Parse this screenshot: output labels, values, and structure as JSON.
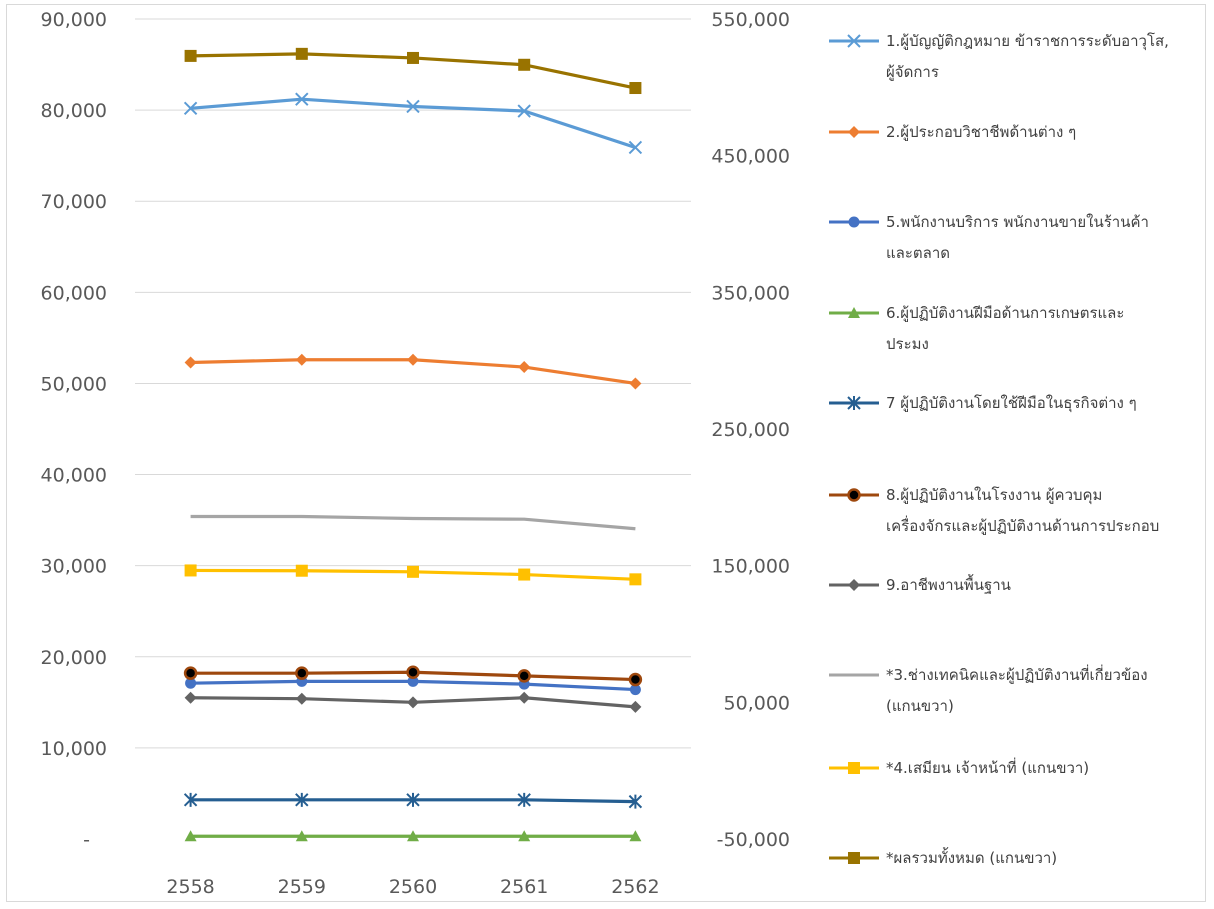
{
  "chart_data": {
    "type": "line",
    "categories": [
      "2558",
      "2559",
      "2560",
      "2561",
      "2562"
    ],
    "y_left": {
      "ticks": [
        "-",
        "10,000",
        "20,000",
        "30,000",
        "40,000",
        "50,000",
        "60,000",
        "70,000",
        "80,000",
        "90,000"
      ],
      "ylim": [
        0,
        90000
      ]
    },
    "y_right": {
      "ticks": [
        "-50,000",
        "50,000",
        "150,000",
        "250,000",
        "350,000",
        "450,000",
        "550,000"
      ],
      "ylim": [
        -50000,
        550000
      ]
    },
    "grid": true,
    "legend_position": "right",
    "series": [
      {
        "name": "1.ผู้บัญญัติกฎหมาย ข้าราชการระดับอาวุโส, ผู้จัดการ",
        "legend_lines": [
          "1.ผู้บัญญัติกฎหมาย ข้าราชการระดับอาวุโส,",
          "ผู้จัดการ"
        ],
        "axis": "left",
        "color": "#5b9bd5",
        "marker": "x",
        "values": [
          80200,
          81200,
          80400,
          79900,
          75900
        ]
      },
      {
        "name": "2.ผู้ประกอบวิชาชีพด้านต่าง ๆ",
        "legend_lines": [
          "2.ผู้ประกอบวิชาชีพด้านต่าง ๆ"
        ],
        "axis": "left",
        "color": "#ed7d31",
        "marker": "diamond",
        "values": [
          52300,
          52600,
          52600,
          51800,
          50000
        ]
      },
      {
        "name": "5.พนักงานบริการ พนักงานขายในร้านค้าและตลาด",
        "legend_lines": [
          "5.พนักงานบริการ พนักงานขายในร้านค้า",
          "และตลาด"
        ],
        "axis": "left",
        "color": "#4472c4",
        "marker": "circle",
        "values": [
          17100,
          17300,
          17300,
          17000,
          16400
        ]
      },
      {
        "name": "6.ผู้ปฏิบัติงานฝีมือด้านการเกษตรและประมง",
        "legend_lines": [
          "6.ผู้ปฏิบัติงานฝีมือด้านการเกษตรและ",
          "ประมง"
        ],
        "axis": "left",
        "color": "#70ad47",
        "marker": "triangle",
        "values": [
          300,
          300,
          300,
          300,
          300
        ]
      },
      {
        "name": "7 ผู้ปฏิบัติงานโดยใช้ฝีมือในธุรกิจต่าง ๆ",
        "legend_lines": [
          "7 ผู้ปฏิบัติงานโดยใช้ฝีมือในธุรกิจต่าง ๆ"
        ],
        "axis": "left",
        "color": "#255e91",
        "marker": "star",
        "values": [
          4300,
          4300,
          4300,
          4300,
          4100
        ]
      },
      {
        "name": "8.ผู้ปฏิบัติงานในโรงงาน ผู้ควบคุมเครื่องจักรและผู้ปฏิบัติงานด้านการประกอบ",
        "legend_lines": [
          "8.ผู้ปฏิบัติงานในโรงงาน ผู้ควบคุม",
          "เครื่องจักรและผู้ปฏิบัติงานด้านการประกอบ"
        ],
        "axis": "left",
        "color": "#9e480e",
        "marker": "circle-dark",
        "values": [
          18200,
          18200,
          18300,
          17900,
          17500
        ]
      },
      {
        "name": "9.อาชีพงานพื้นฐาน",
        "legend_lines": [
          "9.อาชีพงานพื้นฐาน"
        ],
        "axis": "left",
        "color": "#636363",
        "marker": "diamond",
        "values": [
          15500,
          15400,
          15000,
          15500,
          14500
        ]
      },
      {
        "name": "*3.ช่างเทคนิคและผู้ปฏิบัติงานที่เกี่ยวข้อง (แกนขวา)",
        "legend_lines": [
          "*3.ช่างเทคนิคและผู้ปฏิบัติงานที่เกี่ยวข้อง",
          "(แกนขวา)"
        ],
        "axis": "right",
        "color": "#a5a5a5",
        "marker": "none",
        "values": [
          186000,
          186000,
          184500,
          184000,
          177000
        ]
      },
      {
        "name": "*4.เสมียน เจ้าหน้าที่ (แกนขวา)",
        "legend_lines": [
          "*4.เสมียน เจ้าหน้าที่ (แกนขวา)"
        ],
        "axis": "right",
        "color": "#ffc000",
        "marker": "square",
        "values": [
          146500,
          146300,
          145500,
          143500,
          140000
        ]
      },
      {
        "name": "*ผลรวมทั้งหมด (แกนขวา)",
        "legend_lines": [
          "*ผลรวมทั้งหมด (แกนขวา)"
        ],
        "axis": "right",
        "color": "#997300",
        "marker": "square",
        "values": [
          523000,
          524500,
          521500,
          516500,
          499500
        ]
      }
    ]
  }
}
